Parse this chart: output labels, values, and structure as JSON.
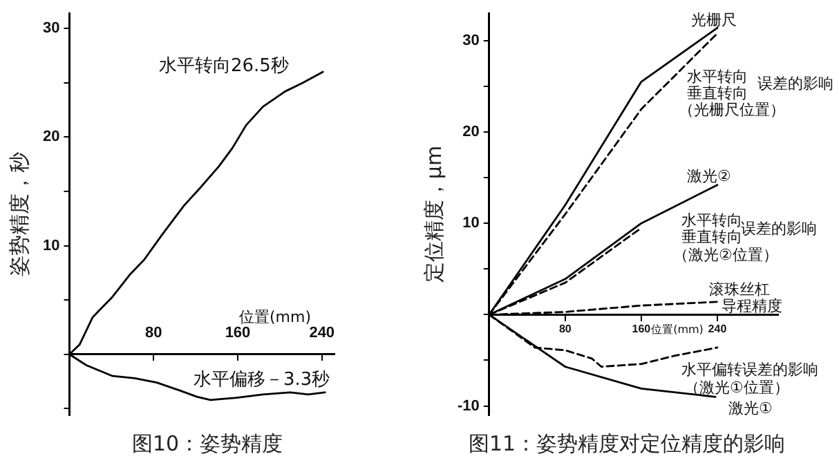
{
  "chart_data": [
    {
      "type": "line",
      "title": "图10：姿势精度",
      "ylabel": "姿势精度，秒",
      "xlabel": "位置(mm)",
      "xlim": [
        0,
        252
      ],
      "xticks": [
        80,
        160,
        240
      ],
      "ylim": [
        -5.6,
        31.4
      ],
      "yticks": [
        {
          "value": -5,
          "label": null
        },
        {
          "value": 0,
          "label": null
        },
        {
          "value": 5,
          "label": null
        },
        10,
        {
          "value": 15,
          "label": null
        },
        20,
        {
          "value": 25,
          "label": null
        },
        30
      ],
      "grid": false,
      "legend": false,
      "marker": "none",
      "series": [
        {
          "color": "#000000",
          "line_style": "solid",
          "x": [
            0,
            9.7,
            22,
            41,
            58,
            71,
            88,
            109,
            125,
            142,
            155,
            168,
            184,
            205,
            222,
            241
          ],
          "values": [
            0,
            0.9,
            3.4,
            5.3,
            7.4,
            8.7,
            11,
            13.7,
            15.4,
            17.3,
            19,
            21.1,
            22.8,
            24.2,
            25,
            26
          ]
        },
        {
          "color": "#000000",
          "line_style": "solid",
          "x": [
            0,
            16,
            41,
            62,
            83,
            104,
            121,
            134,
            159,
            184,
            210,
            227,
            243
          ],
          "values": [
            0,
            -1,
            -2,
            -2.2,
            -2.6,
            -3.3,
            -3.9,
            -4.2,
            -4,
            -3.7,
            -3.5,
            -3.7,
            -3.5
          ]
        }
      ],
      "annotations": [
        "水平转向26.5秒",
        "水平偏移－3.3秒"
      ]
    },
    {
      "type": "line",
      "title": "图11：姿势精度对定位精度的影响",
      "ylabel": "定位精度，μm",
      "xlabel": "位置(mm)",
      "xlim": [
        0,
        304
      ],
      "xticks": [
        80,
        160,
        240
      ],
      "ylim": [
        -11,
        33
      ],
      "yticks": [
        -10,
        {
          "value": -5,
          "label": null
        },
        {
          "value": 0,
          "label": null
        },
        {
          "value": 5,
          "label": null
        },
        10,
        {
          "value": 15,
          "label": null
        },
        20,
        {
          "value": 25,
          "label": null
        },
        30
      ],
      "grid": false,
      "legend": false,
      "marker": "none",
      "series": [
        {
          "color": "#000000",
          "line_style": "solid",
          "x": [
            0,
            80,
            160,
            240
          ],
          "values": [
            0,
            12,
            25.5,
            31.4
          ]
        },
        {
          "color": "#000000",
          "line_style": "dashed",
          "x": [
            0,
            80,
            160,
            240
          ],
          "values": [
            0,
            11,
            22.5,
            30.8
          ]
        },
        {
          "color": "#000000",
          "line_style": "solid",
          "x": [
            0,
            80,
            160,
            240
          ],
          "values": [
            0,
            3.9,
            10,
            14.2
          ]
        },
        {
          "color": "#000000",
          "line_style": "dashed",
          "x": [
            0,
            80,
            160
          ],
          "values": [
            0,
            3.5,
            9.5
          ]
        },
        {
          "color": "#000000",
          "line_style": "dashed",
          "x": [
            0,
            80,
            160,
            240
          ],
          "values": [
            0,
            0.3,
            1,
            1.4
          ]
        },
        {
          "color": "#000000",
          "line_style": "dashed",
          "x": [
            0,
            48,
            80,
            108,
            118,
            160,
            195,
            240
          ],
          "values": [
            0,
            -3.6,
            -3.9,
            -4.8,
            -5.7,
            -5.4,
            -4.5,
            -3.6
          ]
        },
        {
          "color": "#000000",
          "line_style": "solid",
          "x": [
            0,
            80,
            160,
            238
          ],
          "values": [
            0,
            -5.7,
            -8.1,
            -9
          ]
        }
      ],
      "annotations": [
        "光栅尺",
        "水平转向",
        "垂直转向",
        "（光栅尺位置）",
        "误差的影响",
        "激光②",
        "水平转向",
        "垂直转向",
        "（激光②位置）",
        "误差的影响",
        "滚珠丝杠",
        "导程精度",
        "水平偏转误差的影响",
        "（激光①位置）",
        "激光①"
      ]
    }
  ]
}
